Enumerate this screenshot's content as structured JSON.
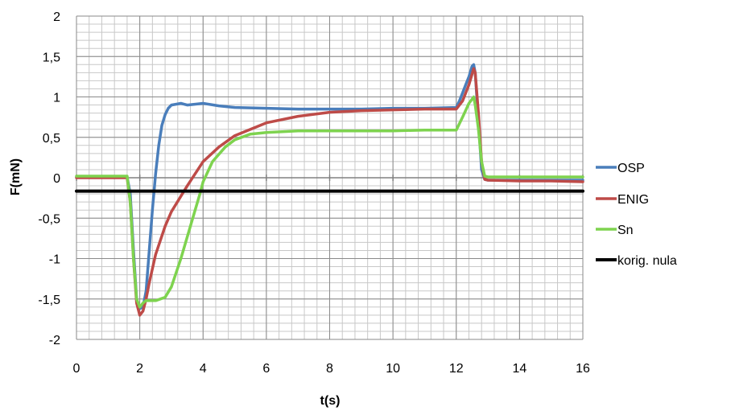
{
  "chart_data": {
    "type": "line",
    "title": "",
    "xlabel": "t(s)",
    "ylabel": "F(mN)",
    "xlim": [
      0,
      16
    ],
    "ylim": [
      -2,
      2
    ],
    "xticks": [
      "0",
      "2",
      "4",
      "6",
      "8",
      "10",
      "12",
      "14",
      "16"
    ],
    "yticks": [
      "2",
      "1,5",
      "1",
      "0,5",
      "0",
      "-0,5",
      "-1",
      "-1,5",
      "-2"
    ],
    "grid": true,
    "legend_position": "right",
    "series": [
      {
        "name": "OSP",
        "color": "#4a7ebb",
        "points": [
          [
            0,
            0.01
          ],
          [
            1.6,
            0.01
          ],
          [
            1.7,
            -0.2
          ],
          [
            1.8,
            -0.9
          ],
          [
            1.9,
            -1.5
          ],
          [
            2.0,
            -1.62
          ],
          [
            2.1,
            -1.6
          ],
          [
            2.2,
            -1.4
          ],
          [
            2.3,
            -0.9
          ],
          [
            2.4,
            -0.4
          ],
          [
            2.5,
            0.05
          ],
          [
            2.6,
            0.4
          ],
          [
            2.7,
            0.65
          ],
          [
            2.8,
            0.78
          ],
          [
            2.9,
            0.86
          ],
          [
            3.0,
            0.9
          ],
          [
            3.3,
            0.92
          ],
          [
            3.5,
            0.9
          ],
          [
            4.0,
            0.92
          ],
          [
            4.5,
            0.89
          ],
          [
            5.0,
            0.87
          ],
          [
            6.0,
            0.86
          ],
          [
            7.0,
            0.85
          ],
          [
            8.0,
            0.85
          ],
          [
            9.0,
            0.85
          ],
          [
            10.0,
            0.86
          ],
          [
            11.0,
            0.86
          ],
          [
            12.0,
            0.87
          ],
          [
            12.1,
            0.95
          ],
          [
            12.2,
            1.05
          ],
          [
            12.3,
            1.15
          ],
          [
            12.4,
            1.25
          ],
          [
            12.5,
            1.38
          ],
          [
            12.55,
            1.4
          ],
          [
            12.6,
            1.3
          ],
          [
            12.7,
            0.7
          ],
          [
            12.8,
            0.1
          ],
          [
            12.9,
            -0.02
          ],
          [
            13.0,
            -0.03
          ],
          [
            14.0,
            -0.03
          ],
          [
            16.0,
            -0.03
          ]
        ]
      },
      {
        "name": "ENIG",
        "color": "#be4b48",
        "points": [
          [
            0,
            0.0
          ],
          [
            1.6,
            0.0
          ],
          [
            1.7,
            -0.3
          ],
          [
            1.8,
            -1.0
          ],
          [
            1.9,
            -1.55
          ],
          [
            2.0,
            -1.7
          ],
          [
            2.1,
            -1.65
          ],
          [
            2.2,
            -1.5
          ],
          [
            2.3,
            -1.3
          ],
          [
            2.5,
            -0.95
          ],
          [
            2.8,
            -0.6
          ],
          [
            3.0,
            -0.42
          ],
          [
            3.5,
            -0.1
          ],
          [
            4.0,
            0.2
          ],
          [
            4.5,
            0.38
          ],
          [
            5.0,
            0.52
          ],
          [
            6.0,
            0.68
          ],
          [
            7.0,
            0.76
          ],
          [
            8.0,
            0.81
          ],
          [
            9.0,
            0.83
          ],
          [
            10.0,
            0.84
          ],
          [
            11.0,
            0.85
          ],
          [
            12.0,
            0.85
          ],
          [
            12.2,
            0.95
          ],
          [
            12.4,
            1.15
          ],
          [
            12.55,
            1.35
          ],
          [
            12.6,
            1.3
          ],
          [
            12.7,
            0.8
          ],
          [
            12.8,
            0.2
          ],
          [
            12.9,
            -0.02
          ],
          [
            13.0,
            -0.03
          ],
          [
            14.0,
            -0.04
          ],
          [
            15.0,
            -0.04
          ],
          [
            16.0,
            -0.05
          ]
        ]
      },
      {
        "name": "Sn",
        "color": "#7ed34f",
        "points": [
          [
            0,
            0.02
          ],
          [
            1.6,
            0.02
          ],
          [
            1.7,
            -0.3
          ],
          [
            1.8,
            -1.0
          ],
          [
            1.9,
            -1.5
          ],
          [
            2.0,
            -1.6
          ],
          [
            2.1,
            -1.55
          ],
          [
            2.2,
            -1.52
          ],
          [
            2.5,
            -1.52
          ],
          [
            2.8,
            -1.48
          ],
          [
            3.0,
            -1.35
          ],
          [
            3.3,
            -1.0
          ],
          [
            3.6,
            -0.6
          ],
          [
            3.9,
            -0.2
          ],
          [
            4.0,
            -0.05
          ],
          [
            4.3,
            0.2
          ],
          [
            4.7,
            0.38
          ],
          [
            5.0,
            0.47
          ],
          [
            5.5,
            0.54
          ],
          [
            6.0,
            0.56
          ],
          [
            7.0,
            0.58
          ],
          [
            8.0,
            0.58
          ],
          [
            9.0,
            0.58
          ],
          [
            10.0,
            0.58
          ],
          [
            11.0,
            0.59
          ],
          [
            12.0,
            0.59
          ],
          [
            12.2,
            0.75
          ],
          [
            12.4,
            0.92
          ],
          [
            12.55,
            1.0
          ],
          [
            12.6,
            0.9
          ],
          [
            12.7,
            0.6
          ],
          [
            12.8,
            0.2
          ],
          [
            12.9,
            0.02
          ],
          [
            13.0,
            0.01
          ],
          [
            14.0,
            0.01
          ],
          [
            15.0,
            0.01
          ],
          [
            16.0,
            0.01
          ]
        ]
      },
      {
        "name": "korig. nula",
        "color": "#000000",
        "points": [
          [
            0,
            -0.165
          ],
          [
            16,
            -0.165
          ]
        ]
      }
    ]
  }
}
